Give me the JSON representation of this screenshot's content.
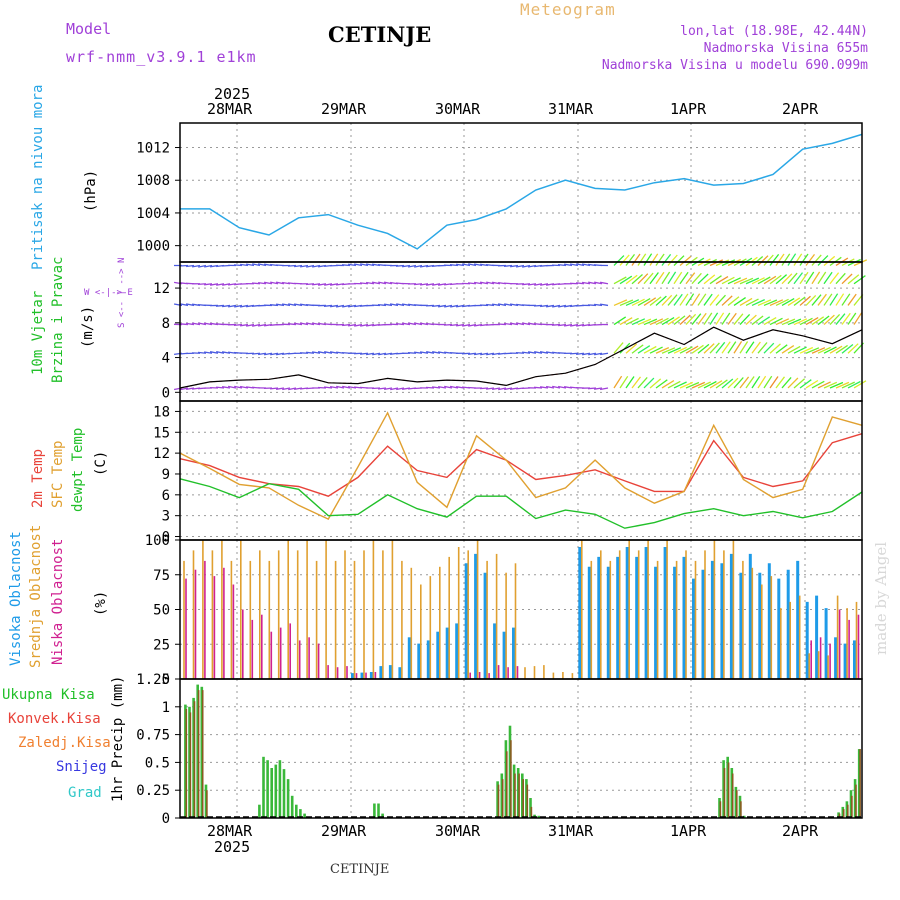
{
  "header": {
    "model_label": "Model",
    "model_name": "wrf-nmm_v3.9.1 e1km",
    "station": "CETINJE",
    "meteogram": "Meteogram",
    "lonlat": "lon,lat (18.98E, 42.44N)",
    "elevation": "Nadmorska Visina 655m",
    "model_elevation": "Nadmorska Visina u modelu 690.099m",
    "watermark": "made by Angel",
    "footer_station": "CETINJE"
  },
  "colors": {
    "pressure": "#2aa7e6",
    "temp2m": "#e8433a",
    "sfc": "#e0a030",
    "dewpt": "#22c02a",
    "high_cloud": "#1e9be8",
    "mid_cloud": "#e0a030",
    "low_cloud": "#d02090",
    "precip": "#3ab83a",
    "conv": "#e8433a",
    "frozen": "#f08030",
    "snow": "#3838e0",
    "graupel": "#30c8c8",
    "purple": "#a040d8"
  },
  "time_axis": {
    "year": "2025",
    "labels": [
      "28MAR",
      "29MAR",
      "30MAR",
      "31MAR",
      "1APR",
      "2APR"
    ]
  },
  "panels": {
    "pressure": {
      "label": "Pritisak na nivou mora",
      "unit": "(hPa)",
      "ticks": [
        "1012",
        "1008",
        "1004",
        "1000"
      ]
    },
    "wind": {
      "label1": "10m Vjetar",
      "label2": "Brzina i Pravac",
      "unit": "(m/s)",
      "ticks": [
        "12",
        "8",
        "4",
        "0"
      ],
      "compass": [
        "W",
        "<",
        "-",
        "|",
        "-",
        ">",
        "E"
      ],
      "compass_ns": "S <-- | --> N"
    },
    "temp": {
      "label1": "2m Temp",
      "label2": "SFC Temp",
      "label3": "dewpt Temp",
      "unit": "(C)",
      "ticks": [
        "18",
        "15",
        "12",
        "9",
        "6",
        "3",
        "0"
      ]
    },
    "cloud": {
      "label1": "Visoka Oblacnost",
      "label2": "Srednja Oblacnost",
      "label3": "Niska Oblacnost",
      "unit": "(%)",
      "ticks": [
        "100",
        "75",
        "50",
        "25",
        "0"
      ]
    },
    "precip": {
      "legend": [
        "Ukupna Kisa",
        "Konvek.Kisa",
        "Zaledj.Kisa",
        "Snijeg",
        "Grad"
      ],
      "unit": "1hr Precip (mm)",
      "ticks": [
        "1.25",
        "1",
        "0.75",
        "0.5",
        "0.25",
        "0"
      ]
    }
  },
  "chart_data": [
    {
      "type": "line",
      "title": "Pritisak na nivou mora",
      "ylabel": "(hPa)",
      "ylim": [
        998,
        1015
      ],
      "x_hours": [
        0,
        6,
        12,
        18,
        24,
        30,
        36,
        42,
        48,
        54,
        60,
        66,
        72,
        78,
        84,
        90,
        96,
        102,
        108,
        114,
        120,
        126,
        132,
        138
      ],
      "series": [
        {
          "name": "Pritisak na nivou mora",
          "values": [
            1004.5,
            1004.5,
            1002.2,
            1001.3,
            1003.4,
            1003.8,
            1002.5,
            1001.5,
            999.6,
            1002.5,
            1003.2,
            1004.5,
            1006.8,
            1008.0,
            1007.0,
            1006.8,
            1007.7,
            1008.2,
            1007.4,
            1007.6,
            1008.7,
            1011.8,
            1012.5,
            1013.6
          ]
        }
      ]
    },
    {
      "type": "line",
      "title": "10m Vjetar Brzina i Pravac",
      "ylabel": "(m/s)",
      "ylim": [
        -1,
        15
      ],
      "x_hours": [
        0,
        6,
        12,
        18,
        24,
        30,
        36,
        42,
        48,
        54,
        60,
        66,
        72,
        78,
        84,
        90,
        96,
        102,
        108,
        114,
        120,
        126,
        132,
        138
      ],
      "series": [
        {
          "values": [
            0.5,
            1.2,
            1.4,
            1.5,
            2.0,
            1.1,
            1.0,
            1.6,
            1.2,
            1.4,
            1.3,
            0.8,
            1.8,
            2.2,
            3.2,
            5.0,
            6.8,
            5.5,
            7.5,
            6.0,
            7.2,
            6.5,
            5.6,
            7.2
          ]
        }
      ]
    },
    {
      "type": "line",
      "title": "2m Temp / SFC Temp / dewpt Temp",
      "ylabel": "(C)",
      "ylim": [
        -0.5,
        19.5
      ],
      "x_hours": [
        0,
        6,
        12,
        18,
        24,
        30,
        36,
        42,
        48,
        54,
        60,
        66,
        72,
        78,
        84,
        90,
        96,
        102,
        108,
        114,
        120,
        126,
        132,
        138
      ],
      "series": [
        {
          "name": "2m Temp",
          "values": [
            11.2,
            10.2,
            8.5,
            7.6,
            7.2,
            5.8,
            8.5,
            13.0,
            9.5,
            8.5,
            12.5,
            11.0,
            8.2,
            8.8,
            9.6,
            8.0,
            6.5,
            6.5,
            13.8,
            8.5,
            7.2,
            8.0,
            13.5,
            14.8
          ]
        },
        {
          "name": "SFC Temp",
          "values": [
            12.0,
            9.8,
            7.5,
            7.0,
            4.5,
            2.5,
            10.0,
            17.8,
            7.8,
            4.2,
            14.5,
            11.0,
            5.6,
            7.0,
            11.0,
            7.0,
            4.8,
            6.5,
            16.0,
            8.2,
            5.6,
            6.8,
            17.2,
            16.0
          ]
        },
        {
          "name": "dewpt Temp",
          "values": [
            8.3,
            7.2,
            5.6,
            7.6,
            6.8,
            3.0,
            3.2,
            6.0,
            4.0,
            2.8,
            5.8,
            5.8,
            2.6,
            3.8,
            3.2,
            1.2,
            2.0,
            3.3,
            4.0,
            3.0,
            3.6,
            2.7,
            3.6,
            6.4
          ]
        }
      ]
    },
    {
      "type": "bar",
      "title": "Oblacnost",
      "ylabel": "(%)",
      "ylim": [
        0,
        100
      ],
      "series": [
        {
          "name": "Visoka Oblacnost",
          "values": [
            0,
            0,
            0,
            0,
            0,
            0,
            5,
            10,
            30,
            40,
            90,
            40,
            0,
            0,
            95,
            95,
            95,
            95,
            85,
            90,
            90,
            85,
            60,
            30
          ]
        },
        {
          "name": "Srednja Oblacnost",
          "values": [
            100,
            100,
            100,
            100,
            100,
            100,
            100,
            100,
            80,
            95,
            100,
            90,
            10,
            5,
            100,
            100,
            100,
            100,
            100,
            100,
            80,
            60,
            20,
            60
          ]
        },
        {
          "name": "Niska Oblacnost",
          "values": [
            85,
            80,
            50,
            40,
            30,
            10,
            5,
            0,
            0,
            0,
            5,
            10,
            0,
            0,
            0,
            0,
            0,
            0,
            0,
            0,
            0,
            0,
            30,
            50
          ]
        }
      ]
    },
    {
      "type": "bar",
      "title": "1hr Precip",
      "ylabel": "1hr Precip (mm)",
      "ylim": [
        0,
        1.25
      ],
      "x_hours": [
        1,
        2,
        3,
        4,
        5,
        6,
        7,
        8,
        19,
        20,
        21,
        22,
        23,
        24,
        25,
        26,
        27,
        28,
        29,
        30,
        47,
        48,
        49,
        77,
        78,
        79,
        80,
        81,
        82,
        83,
        84,
        85,
        86,
        87,
        88,
        131,
        132,
        133,
        134,
        135,
        136,
        137,
        138,
        160,
        161,
        162,
        163,
        164,
        165
      ],
      "series": [
        {
          "name": "Ukupna Kisa",
          "values": [
            1.02,
            1.0,
            1.08,
            1.2,
            1.18,
            0.3,
            0,
            0,
            0.12,
            0.55,
            0.52,
            0.45,
            0.48,
            0.52,
            0.44,
            0.35,
            0.2,
            0.12,
            0.08,
            0.04,
            0.13,
            0.13,
            0.04,
            0.33,
            0.4,
            0.7,
            0.83,
            0.48,
            0.45,
            0.4,
            0.35,
            0.18,
            0.03,
            0.02,
            0.01,
            0.18,
            0.52,
            0.55,
            0.45,
            0.28,
            0.2,
            0.02,
            0,
            0.05,
            0.1,
            0.15,
            0.25,
            0.35,
            0.62
          ]
        },
        {
          "name": "Konvek.Kisa",
          "values": [
            0.98,
            0.95,
            1.05,
            1.15,
            1.15,
            0.25,
            0,
            0,
            0,
            0,
            0,
            0,
            0,
            0,
            0,
            0,
            0,
            0,
            0,
            0,
            0,
            0,
            0,
            0.3,
            0.35,
            0.6,
            0.7,
            0.4,
            0.4,
            0.35,
            0.3,
            0.1,
            0,
            0,
            0,
            0.15,
            0.45,
            0.5,
            0.4,
            0.25,
            0.15,
            0,
            0,
            0.04,
            0.08,
            0.12,
            0.2,
            0.3,
            0.62
          ]
        }
      ]
    }
  ]
}
